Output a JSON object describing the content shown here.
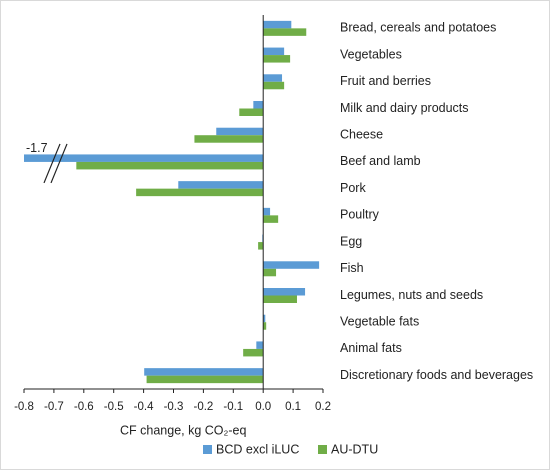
{
  "chart_data": {
    "type": "bar",
    "orientation": "horizontal",
    "categories": [
      "Bread, cereals and potatoes",
      "Vegetables",
      "Fruit and berries",
      "Milk and dairy products",
      "Cheese",
      "Beef and lamb",
      "Pork",
      "Poultry",
      "Egg",
      "Fish",
      "Legumes, nuts and seeds",
      "Vegetable fats",
      "Animal fats",
      "Discretionary foods and beverages"
    ],
    "series": [
      {
        "name": "BCD excl iLUC",
        "color": "#5b9bd5",
        "values": [
          0.094,
          0.07,
          0.063,
          -0.033,
          -0.157,
          -1.7,
          -0.284,
          0.023,
          -0.003,
          0.187,
          0.14,
          0.007,
          -0.023,
          -0.398
        ],
        "value_labels": [
          null,
          null,
          null,
          null,
          null,
          "-1.7",
          null,
          null,
          null,
          null,
          null,
          null,
          null,
          null
        ]
      },
      {
        "name": "AU-DTU",
        "color": "#70ad47",
        "values": [
          0.144,
          0.09,
          0.07,
          -0.08,
          -0.23,
          -0.625,
          -0.425,
          0.05,
          -0.017,
          0.043,
          0.113,
          0.01,
          -0.067,
          -0.39
        ]
      }
    ],
    "xlabel": "CF change, kg CO₂-eq",
    "xlim": [
      -0.8,
      0.2
    ],
    "xticks": [
      -0.8,
      -0.7,
      -0.6,
      -0.5,
      -0.4,
      -0.3,
      -0.2,
      -0.1,
      {
        "value": 0,
        "label": "0.0"
      },
      0.1,
      0.2
    ],
    "legend": "bottom"
  }
}
